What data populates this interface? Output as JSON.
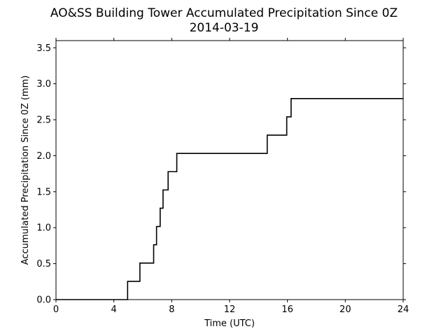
{
  "chart_data": {
    "type": "line",
    "title": "AO&SS Building Tower Accumulated Precipitation Since 0Z",
    "subtitle": "2014-03-19",
    "xlabel": "Time (UTC)",
    "ylabel": "Accumulated Precipitation Since 0Z (mm)",
    "xlim": [
      0,
      24
    ],
    "ylim": [
      0,
      3.6
    ],
    "xticks": [
      0,
      4,
      8,
      12,
      16,
      20,
      24
    ],
    "xtick_labels": [
      "0",
      "4",
      "8",
      "12",
      "16",
      "20",
      "24"
    ],
    "yticks": [
      0,
      0.5,
      1,
      1.5,
      2,
      2.5,
      3,
      3.5
    ],
    "ytick_labels": [
      "0.0",
      "0.5",
      "1.0",
      "1.5",
      "2.0",
      "2.5",
      "3.0",
      "3.5"
    ],
    "grid": false,
    "line_color": "#000000",
    "series": [
      {
        "step": "post",
        "x": [
          0,
          4.95,
          5.8,
          6.75,
          6.95,
          7.2,
          7.4,
          7.75,
          8.35,
          14.6,
          15.95,
          16.25,
          24
        ],
        "y": [
          0,
          0.254,
          0.508,
          0.762,
          1.016,
          1.27,
          1.524,
          1.778,
          2.032,
          2.286,
          2.54,
          2.794,
          2.794
        ]
      }
    ]
  }
}
